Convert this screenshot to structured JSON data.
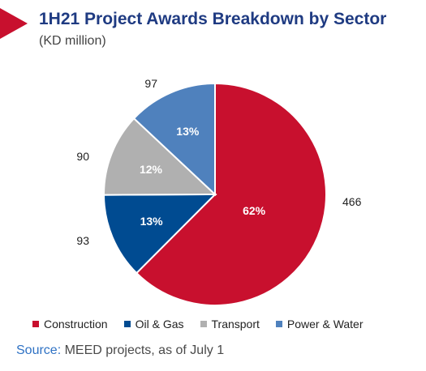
{
  "chart_data": {
    "type": "pie",
    "title": "1H21 Project Awards Breakdown by Sector",
    "subtitle": "(KD million)",
    "slices": [
      {
        "name": "Construction",
        "value": 466,
        "percent_label": "62%",
        "color": "#c8102e"
      },
      {
        "name": "Oil & Gas",
        "value": 93,
        "percent_label": "13%",
        "color": "#004b91"
      },
      {
        "name": "Transport",
        "value": 90,
        "percent_label": "12%",
        "color": "#b0b0b0"
      },
      {
        "name": "Power & Water",
        "value": 97,
        "percent_label": "13%",
        "color": "#4f81bd"
      }
    ],
    "legend_position": "bottom"
  },
  "source": {
    "label": "Source:",
    "text": " MEED projects, as of July 1"
  }
}
